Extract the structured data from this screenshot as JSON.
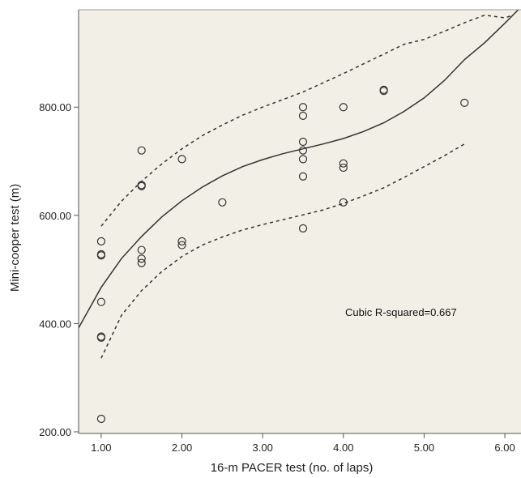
{
  "chart_data": {
    "type": "scatter",
    "title": "",
    "xlabel": "16-m PACER test (no. of laps)",
    "ylabel": "Mini-cooper test (m)",
    "xlim": [
      0.72,
      6.2
    ],
    "ylim": [
      197,
      980
    ],
    "xticks": [
      1.0,
      2.0,
      3.0,
      4.0,
      5.0,
      6.0
    ],
    "xtick_labels": [
      "1.00",
      "2.00",
      "3.00",
      "4.00",
      "5.00",
      "6.00"
    ],
    "yticks": [
      200,
      400,
      600,
      800
    ],
    "ytick_labels": [
      "200.00",
      "400.00",
      "600.00",
      "800.00"
    ],
    "grid": false,
    "background": "#f2efe6",
    "annotation": "Cubic R-squared=0.667",
    "points": [
      [
        1.0,
        552
      ],
      [
        1.0,
        528
      ],
      [
        1.0,
        526
      ],
      [
        1.0,
        440
      ],
      [
        1.0,
        376
      ],
      [
        1.0,
        374
      ],
      [
        1.0,
        224
      ],
      [
        1.5,
        720
      ],
      [
        1.5,
        656
      ],
      [
        1.5,
        654
      ],
      [
        1.5,
        536
      ],
      [
        1.5,
        520
      ],
      [
        1.5,
        512
      ],
      [
        2.0,
        704
      ],
      [
        2.0,
        552
      ],
      [
        2.0,
        545
      ],
      [
        2.5,
        624
      ],
      [
        3.5,
        800
      ],
      [
        3.5,
        784
      ],
      [
        3.5,
        736
      ],
      [
        3.5,
        720
      ],
      [
        3.5,
        704
      ],
      [
        3.5,
        672
      ],
      [
        3.5,
        576
      ],
      [
        4.0,
        800
      ],
      [
        4.0,
        696
      ],
      [
        4.0,
        688
      ],
      [
        4.0,
        624
      ],
      [
        4.5,
        832
      ],
      [
        4.5,
        830
      ],
      [
        5.5,
        808
      ]
    ],
    "fit_line": {
      "x": [
        0.72,
        1.0,
        1.25,
        1.5,
        1.75,
        2.0,
        2.25,
        2.5,
        2.75,
        3.0,
        3.25,
        3.5,
        3.75,
        4.0,
        4.25,
        4.5,
        4.75,
        5.0,
        5.25,
        5.5,
        5.75,
        6.0,
        6.2
      ],
      "y": [
        392,
        467,
        520,
        561,
        597,
        627,
        652,
        673,
        690,
        703,
        714,
        723,
        732,
        742,
        755,
        771,
        792,
        817,
        849,
        888,
        919,
        955,
        985
      ]
    },
    "ci_upper": {
      "x": [
        1.0,
        1.25,
        1.5,
        1.75,
        2.0,
        2.25,
        2.5,
        2.75,
        3.0,
        3.25,
        3.5,
        3.75,
        4.0,
        4.25,
        4.5,
        4.75,
        5.0,
        5.25,
        5.5,
        5.75,
        6.0,
        6.1
      ],
      "y": [
        580,
        626,
        663,
        695,
        723,
        747,
        767,
        785,
        800,
        814,
        828,
        845,
        862,
        880,
        898,
        916,
        925,
        940,
        956,
        970,
        965,
        970
      ]
    },
    "ci_lower": {
      "x": [
        1.0,
        1.25,
        1.5,
        1.75,
        2.0,
        2.25,
        2.5,
        2.75,
        3.0,
        3.25,
        3.5,
        3.75,
        4.0,
        4.25,
        4.5,
        4.75,
        5.0,
        5.25,
        5.5
      ],
      "y": [
        336,
        415,
        461,
        496,
        524,
        545,
        560,
        573,
        583,
        592,
        601,
        610,
        622,
        636,
        651,
        670,
        690,
        710,
        732
      ]
    },
    "colors": {
      "plot_bg": "#f2efe6",
      "axis": "#555555",
      "line": "#333333",
      "marker": "#333333"
    }
  }
}
